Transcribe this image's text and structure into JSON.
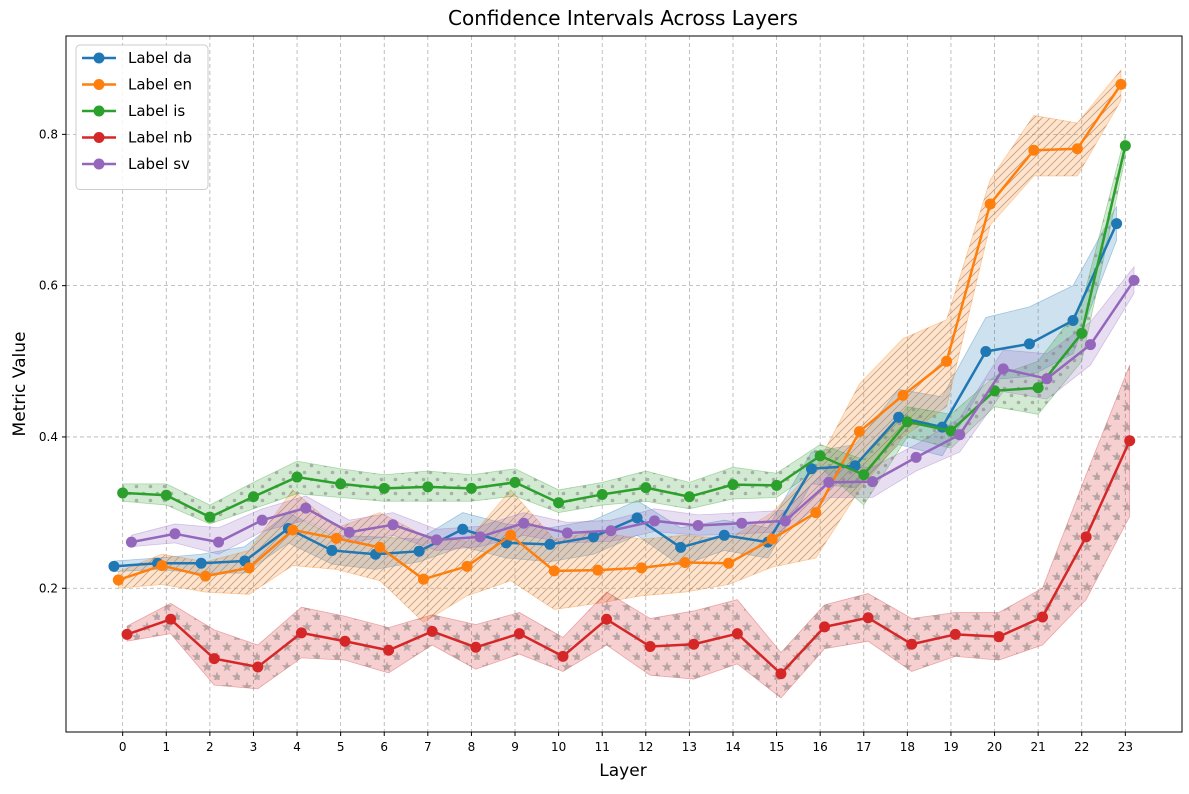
{
  "chart_data": {
    "type": "line",
    "title": "Confidence Intervals Across Layers",
    "xlabel": "Layer",
    "ylabel": "Metric Value",
    "ylim": [
      0.01,
      0.93
    ],
    "xlim": [
      -1.3,
      24.3
    ],
    "x_ticks": [
      0,
      1,
      2,
      3,
      4,
      5,
      6,
      7,
      8,
      9,
      10,
      11,
      12,
      13,
      14,
      15,
      16,
      17,
      18,
      19,
      20,
      21,
      22,
      23
    ],
    "y_ticks": [
      0.2,
      0.4,
      0.6,
      0.8
    ],
    "y_tick_labels": [
      "0.2",
      "0.4",
      "0.6",
      "0.8"
    ],
    "grid": true,
    "legend_position": "top-left",
    "series": [
      {
        "name": "Label da",
        "color": "#1f77b4",
        "hatch": "none",
        "x": [
          -0.2,
          0.8,
          1.8,
          2.8,
          3.8,
          4.8,
          5.8,
          6.8,
          7.8,
          8.8,
          9.8,
          10.8,
          11.8,
          12.8,
          13.8,
          14.8,
          15.8,
          16.8,
          17.8,
          18.8,
          19.8,
          20.8,
          21.8,
          22.8
        ],
        "y": [
          0.229,
          0.233,
          0.233,
          0.236,
          0.279,
          0.25,
          0.245,
          0.249,
          0.278,
          0.26,
          0.258,
          0.268,
          0.293,
          0.254,
          0.27,
          0.261,
          0.358,
          0.362,
          0.426,
          0.413,
          0.513,
          0.523,
          0.554,
          0.682
        ],
        "lower": [
          0.222,
          0.225,
          0.22,
          0.22,
          0.26,
          0.232,
          0.225,
          0.235,
          0.255,
          0.24,
          0.235,
          0.245,
          0.27,
          0.23,
          0.25,
          0.24,
          0.338,
          0.333,
          0.39,
          0.375,
          0.475,
          0.48,
          0.51,
          0.66
        ],
        "upper": [
          0.236,
          0.24,
          0.245,
          0.255,
          0.3,
          0.27,
          0.268,
          0.265,
          0.3,
          0.285,
          0.28,
          0.29,
          0.316,
          0.28,
          0.29,
          0.28,
          0.38,
          0.39,
          0.463,
          0.453,
          0.558,
          0.572,
          0.6,
          0.705
        ]
      },
      {
        "name": "Label en",
        "color": "#ff7f0e",
        "hatch": "diagonal",
        "x": [
          -0.1,
          0.9,
          1.9,
          2.9,
          3.9,
          4.9,
          5.9,
          6.9,
          7.9,
          8.9,
          9.9,
          10.9,
          11.9,
          12.9,
          13.9,
          14.9,
          15.9,
          16.9,
          17.9,
          18.9,
          19.9,
          20.9,
          21.9,
          22.9
        ],
        "y": [
          0.211,
          0.23,
          0.216,
          0.227,
          0.277,
          0.266,
          0.254,
          0.212,
          0.229,
          0.27,
          0.223,
          0.224,
          0.227,
          0.234,
          0.233,
          0.265,
          0.3,
          0.407,
          0.455,
          0.5,
          0.708,
          0.779,
          0.781,
          0.866
        ],
        "lower": [
          0.2,
          0.205,
          0.195,
          0.192,
          0.23,
          0.225,
          0.21,
          0.155,
          0.19,
          0.21,
          0.172,
          0.18,
          0.19,
          0.195,
          0.205,
          0.228,
          0.24,
          0.33,
          0.4,
          0.44,
          0.68,
          0.745,
          0.745,
          0.845
        ],
        "upper": [
          0.222,
          0.245,
          0.235,
          0.25,
          0.33,
          0.28,
          0.3,
          0.27,
          0.262,
          0.33,
          0.265,
          0.275,
          0.265,
          0.27,
          0.265,
          0.3,
          0.36,
          0.47,
          0.53,
          0.555,
          0.74,
          0.825,
          0.815,
          0.885
        ]
      },
      {
        "name": "Label is",
        "color": "#2ca02c",
        "hatch": "dots",
        "x": [
          0,
          1,
          2,
          3,
          4,
          5,
          6,
          7,
          8,
          9,
          10,
          11,
          12,
          13,
          14,
          15,
          16,
          17,
          18,
          19,
          20,
          21,
          22,
          23
        ],
        "y": [
          0.326,
          0.323,
          0.294,
          0.321,
          0.347,
          0.338,
          0.332,
          0.334,
          0.332,
          0.34,
          0.313,
          0.324,
          0.333,
          0.321,
          0.337,
          0.336,
          0.375,
          0.35,
          0.42,
          0.408,
          0.461,
          0.465,
          0.537,
          0.785
        ],
        "lower": [
          0.315,
          0.31,
          0.285,
          0.305,
          0.325,
          0.32,
          0.315,
          0.315,
          0.315,
          0.322,
          0.3,
          0.31,
          0.315,
          0.305,
          0.318,
          0.32,
          0.36,
          0.31,
          0.4,
          0.385,
          0.44,
          0.43,
          0.5,
          0.77
        ],
        "upper": [
          0.338,
          0.338,
          0.31,
          0.34,
          0.368,
          0.358,
          0.35,
          0.355,
          0.35,
          0.358,
          0.33,
          0.34,
          0.355,
          0.34,
          0.36,
          0.352,
          0.39,
          0.37,
          0.44,
          0.43,
          0.48,
          0.5,
          0.575,
          0.8
        ]
      },
      {
        "name": "Label nb",
        "color": "#d62728",
        "hatch": "stars",
        "x": [
          0.1,
          1.1,
          2.1,
          3.1,
          4.1,
          5.1,
          6.1,
          7.1,
          8.1,
          9.1,
          10.1,
          11.1,
          12.1,
          13.1,
          14.1,
          15.1,
          16.1,
          17.1,
          18.1,
          19.1,
          20.1,
          21.1,
          22.1,
          23.1
        ],
        "y": [
          0.139,
          0.159,
          0.107,
          0.096,
          0.141,
          0.13,
          0.118,
          0.143,
          0.122,
          0.14,
          0.11,
          0.159,
          0.123,
          0.126,
          0.14,
          0.087,
          0.149,
          0.161,
          0.126,
          0.139,
          0.136,
          0.162,
          0.268,
          0.395
        ],
        "lower": [
          0.13,
          0.14,
          0.072,
          0.067,
          0.108,
          0.105,
          0.088,
          0.125,
          0.093,
          0.113,
          0.09,
          0.125,
          0.085,
          0.08,
          0.1,
          0.055,
          0.12,
          0.13,
          0.09,
          0.11,
          0.105,
          0.125,
          0.185,
          0.295
        ],
        "upper": [
          0.15,
          0.18,
          0.145,
          0.125,
          0.175,
          0.163,
          0.148,
          0.165,
          0.152,
          0.168,
          0.135,
          0.195,
          0.16,
          0.17,
          0.185,
          0.115,
          0.178,
          0.193,
          0.16,
          0.168,
          0.168,
          0.2,
          0.35,
          0.495
        ]
      },
      {
        "name": "Label sv",
        "color": "#9467bd",
        "hatch": "none",
        "x": [
          0.2,
          1.2,
          2.2,
          3.2,
          4.2,
          5.2,
          6.2,
          7.2,
          8.2,
          9.2,
          10.2,
          11.2,
          12.2,
          13.2,
          14.2,
          15.2,
          16.2,
          17.2,
          18.2,
          19.2,
          20.2,
          21.2,
          22.2,
          23.2
        ],
        "y": [
          0.261,
          0.272,
          0.261,
          0.29,
          0.306,
          0.274,
          0.284,
          0.264,
          0.268,
          0.286,
          0.273,
          0.276,
          0.289,
          0.283,
          0.286,
          0.289,
          0.34,
          0.341,
          0.373,
          0.403,
          0.49,
          0.477,
          0.522,
          0.607
        ],
        "lower": [
          0.255,
          0.26,
          0.245,
          0.275,
          0.29,
          0.26,
          0.27,
          0.25,
          0.255,
          0.27,
          0.26,
          0.262,
          0.275,
          0.27,
          0.272,
          0.275,
          0.32,
          0.32,
          0.355,
          0.38,
          0.46,
          0.45,
          0.495,
          0.59
        ],
        "upper": [
          0.27,
          0.285,
          0.28,
          0.305,
          0.322,
          0.29,
          0.3,
          0.278,
          0.282,
          0.3,
          0.287,
          0.29,
          0.305,
          0.297,
          0.3,
          0.303,
          0.36,
          0.36,
          0.39,
          0.425,
          0.515,
          0.51,
          0.552,
          0.625
        ]
      }
    ]
  }
}
